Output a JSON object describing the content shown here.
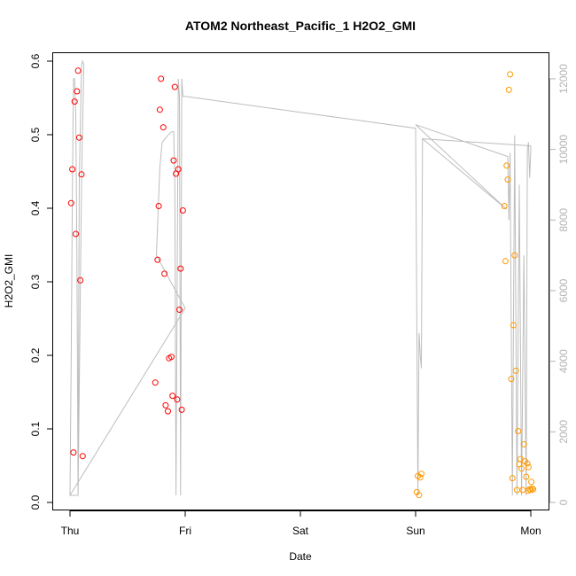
{
  "chart_data": {
    "type": "scatter",
    "title": "ATOM2 Northeast_Pacific_1 H2O2_GMI",
    "xlabel": "Date",
    "ylabel": "H2O2_GMI",
    "x_ticks": [
      "Thu",
      "Fri",
      "Sat",
      "Sun",
      "Mon"
    ],
    "xlim": [
      -0.2,
      4.15
    ],
    "ylim": [
      0,
      0.6
    ],
    "y_ticks": [
      0.0,
      0.1,
      0.2,
      0.3,
      0.4,
      0.5,
      0.6
    ],
    "y_tick_labels": [
      "0.0",
      "0.1",
      "0.2",
      "0.3",
      "0.4",
      "0.5",
      "0.6"
    ],
    "y2lim": [
      0,
      12500
    ],
    "y2_ticks": [
      0,
      2000,
      4000,
      6000,
      8000,
      10000,
      12000
    ],
    "y2_tick_labels": [
      "0",
      "2000",
      "4000",
      "6000",
      "8000",
      "10000",
      "12000"
    ],
    "colors": {
      "series_red": "#ff0000",
      "series_orange": "#ff9900",
      "altitude_line": "#bdbdbd"
    },
    "series": [
      {
        "color": "#ff0000",
        "points": [
          {
            "x": 0.01,
            "y": 0.407
          },
          {
            "x": 0.02,
            "y": 0.453
          },
          {
            "x": 0.03,
            "y": 0.068
          },
          {
            "x": 0.04,
            "y": 0.545
          },
          {
            "x": 0.05,
            "y": 0.365
          },
          {
            "x": 0.06,
            "y": 0.559
          },
          {
            "x": 0.07,
            "y": 0.587
          },
          {
            "x": 0.08,
            "y": 0.496
          },
          {
            "x": 0.09,
            "y": 0.302
          },
          {
            "x": 0.1,
            "y": 0.446
          },
          {
            "x": 0.11,
            "y": 0.063
          },
          {
            "x": 0.74,
            "y": 0.163
          },
          {
            "x": 0.76,
            "y": 0.33
          },
          {
            "x": 0.77,
            "y": 0.403
          },
          {
            "x": 0.78,
            "y": 0.534
          },
          {
            "x": 0.79,
            "y": 0.576
          },
          {
            "x": 0.81,
            "y": 0.51
          },
          {
            "x": 0.82,
            "y": 0.311
          },
          {
            "x": 0.83,
            "y": 0.132
          },
          {
            "x": 0.85,
            "y": 0.124
          },
          {
            "x": 0.86,
            "y": 0.196
          },
          {
            "x": 0.88,
            "y": 0.198
          },
          {
            "x": 0.89,
            "y": 0.145
          },
          {
            "x": 0.9,
            "y": 0.465
          },
          {
            "x": 0.91,
            "y": 0.565
          },
          {
            "x": 0.92,
            "y": 0.447
          },
          {
            "x": 0.93,
            "y": 0.14
          },
          {
            "x": 0.94,
            "y": 0.453
          },
          {
            "x": 0.95,
            "y": 0.262
          },
          {
            "x": 0.96,
            "y": 0.318
          },
          {
            "x": 0.97,
            "y": 0.126
          },
          {
            "x": 0.98,
            "y": 0.397
          }
        ]
      },
      {
        "color": "#ff9900",
        "points": [
          {
            "x": 3.01,
            "y": 0.014
          },
          {
            "x": 3.02,
            "y": 0.036
          },
          {
            "x": 3.03,
            "y": 0.01
          },
          {
            "x": 3.04,
            "y": 0.034
          },
          {
            "x": 3.05,
            "y": 0.039
          },
          {
            "x": 3.77,
            "y": 0.403
          },
          {
            "x": 3.78,
            "y": 0.328
          },
          {
            "x": 3.79,
            "y": 0.458
          },
          {
            "x": 3.8,
            "y": 0.439
          },
          {
            "x": 3.81,
            "y": 0.561
          },
          {
            "x": 3.82,
            "y": 0.582
          },
          {
            "x": 3.83,
            "y": 0.168
          },
          {
            "x": 3.84,
            "y": 0.033
          },
          {
            "x": 3.85,
            "y": 0.241
          },
          {
            "x": 3.86,
            "y": 0.336
          },
          {
            "x": 3.87,
            "y": 0.179
          },
          {
            "x": 3.88,
            "y": 0.017
          },
          {
            "x": 3.89,
            "y": 0.097
          },
          {
            "x": 3.9,
            "y": 0.052
          },
          {
            "x": 3.91,
            "y": 0.059
          },
          {
            "x": 3.92,
            "y": 0.046
          },
          {
            "x": 3.93,
            "y": 0.017
          },
          {
            "x": 3.94,
            "y": 0.079
          },
          {
            "x": 3.95,
            "y": 0.056
          },
          {
            "x": 3.96,
            "y": 0.035
          },
          {
            "x": 3.97,
            "y": 0.053
          },
          {
            "x": 3.975,
            "y": 0.016
          },
          {
            "x": 3.98,
            "y": 0.048
          },
          {
            "x": 3.99,
            "y": 0.018
          },
          {
            "x": 4.0,
            "y": 0.017
          },
          {
            "x": 4.005,
            "y": 0.028
          },
          {
            "x": 4.01,
            "y": 0.019
          },
          {
            "x": 4.02,
            "y": 0.018
          }
        ]
      }
    ],
    "altitude_line": [
      [
        0.0,
        200
      ],
      [
        0.01,
        4000
      ],
      [
        0.02,
        8500
      ],
      [
        0.03,
        12000
      ],
      [
        0.04,
        12000
      ],
      [
        0.05,
        11000
      ],
      [
        0.06,
        7000
      ],
      [
        0.07,
        200
      ],
      [
        0.08,
        9000
      ],
      [
        0.1,
        12400
      ],
      [
        0.11,
        12500
      ],
      [
        0.12,
        12400
      ],
      [
        0.1,
        9000
      ],
      [
        0.07,
        200
      ],
      [
        0.0,
        200
      ],
      [
        1.0,
        5500
      ],
      [
        0.75,
        7000
      ],
      [
        0.78,
        9500
      ],
      [
        0.8,
        10200
      ],
      [
        0.85,
        10400
      ],
      [
        0.88,
        10500
      ],
      [
        0.9,
        10500
      ],
      [
        0.91,
        9000
      ],
      [
        0.92,
        200
      ],
      [
        0.94,
        12000
      ],
      [
        0.95,
        11500
      ],
      [
        0.96,
        200
      ],
      [
        0.97,
        12000
      ],
      [
        0.98,
        11500
      ],
      [
        1.0,
        11500
      ],
      [
        3.0,
        10600
      ],
      [
        3.02,
        200
      ],
      [
        3.03,
        4800
      ],
      [
        3.04,
        4200
      ],
      [
        3.05,
        3800
      ],
      [
        3.06,
        10300
      ],
      [
        3.79,
        8300
      ],
      [
        3.0,
        10700
      ],
      [
        3.8,
        9800
      ],
      [
        3.81,
        8000
      ],
      [
        3.82,
        9900
      ],
      [
        3.84,
        200
      ],
      [
        3.86,
        10400
      ],
      [
        3.88,
        200
      ],
      [
        3.9,
        9000
      ],
      [
        3.92,
        200
      ],
      [
        3.94,
        7000
      ],
      [
        3.96,
        200
      ],
      [
        3.97,
        10000
      ],
      [
        3.98,
        10200
      ],
      [
        3.99,
        9200
      ],
      [
        4.0,
        10000
      ],
      [
        4.0,
        10100
      ],
      [
        3.06,
        10300
      ]
    ]
  }
}
